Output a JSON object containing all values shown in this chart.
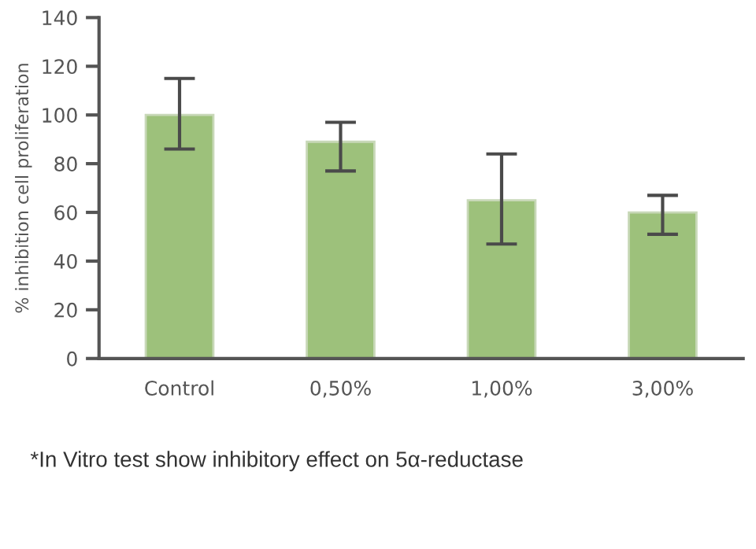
{
  "chart_data": {
    "type": "bar",
    "ylabel": "% inhibition cell proliferation",
    "categories": [
      "Control",
      "0,50%",
      "1,00%",
      "3,00%"
    ],
    "values": [
      100,
      89,
      65,
      60
    ],
    "errors": [
      [
        86,
        115
      ],
      [
        77,
        97
      ],
      [
        47,
        84
      ],
      [
        51,
        67
      ]
    ],
    "color": "#9dc17b",
    "ylim": [
      0,
      140
    ],
    "yticks": [
      0,
      20,
      40,
      60,
      80,
      100,
      120,
      140
    ],
    "grid": false,
    "legend": false,
    "annotations": [
      "*In Vitro test show inhibitory effect on 5α-reductase"
    ]
  }
}
